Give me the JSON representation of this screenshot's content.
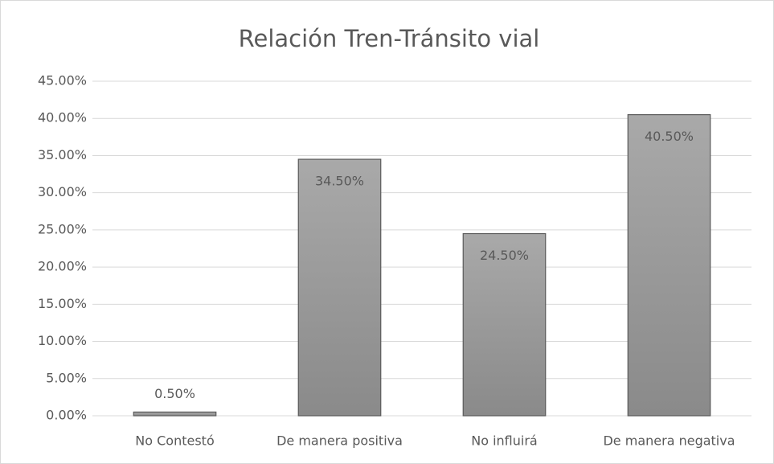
{
  "chart_data": {
    "type": "bar",
    "title": "Relación Tren-Tránsito vial",
    "categories": [
      "No Contestó",
      "De manera positiva",
      "No influirá",
      "De manera negativa"
    ],
    "values": [
      0.5,
      34.5,
      24.5,
      40.5
    ],
    "value_labels": [
      "0.50%",
      "34.50%",
      "24.50%",
      "40.50%"
    ],
    "color": "#9a9a9a",
    "ylim": [
      0,
      45
    ],
    "yticks": [
      {
        "value": 0,
        "label": "0.00%"
      },
      {
        "value": 5,
        "label": "5.00%"
      },
      {
        "value": 10,
        "label": "10.00%"
      },
      {
        "value": 15,
        "label": "15.00%"
      },
      {
        "value": 20,
        "label": "20.00%"
      },
      {
        "value": 25,
        "label": "25.00%"
      },
      {
        "value": 30,
        "label": "30.00%"
      },
      {
        "value": 35,
        "label": "35.00%"
      },
      {
        "value": 40,
        "label": "40.00%"
      },
      {
        "value": 45,
        "label": "45.00%"
      }
    ],
    "grid": true
  }
}
